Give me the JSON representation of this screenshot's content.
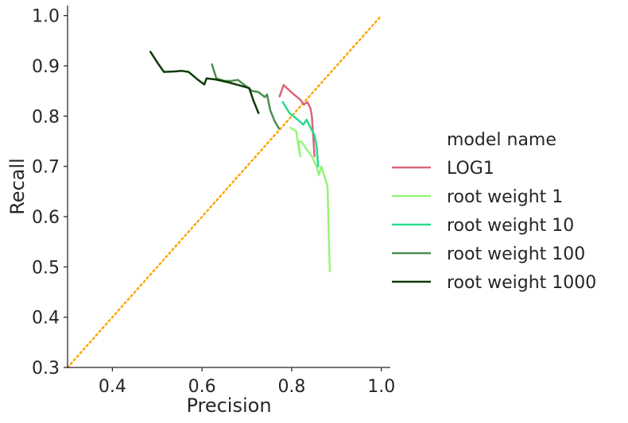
{
  "chart_data": {
    "type": "line",
    "xlabel": "Precision",
    "ylabel": "Recall",
    "xlim": [
      0.3,
      1.02
    ],
    "ylim": [
      0.3,
      1.02
    ],
    "xticks": [
      {
        "value": 0.4,
        "label": "0.4"
      },
      {
        "value": 0.6,
        "label": "0.6"
      },
      {
        "value": 0.8,
        "label": "0.8"
      },
      {
        "value": 1.0,
        "label": "1.0"
      }
    ],
    "yticks": [
      {
        "value": 0.3,
        "label": "0.3"
      },
      {
        "value": 0.4,
        "label": "0.4"
      },
      {
        "value": 0.5,
        "label": "0.5"
      },
      {
        "value": 0.6,
        "label": "0.6"
      },
      {
        "value": 0.7,
        "label": "0.7"
      },
      {
        "value": 0.8,
        "label": "0.8"
      },
      {
        "value": 0.9,
        "label": "0.9"
      },
      {
        "value": 1.0,
        "label": "1.0"
      }
    ],
    "grid": false,
    "legend": {
      "title": "model name",
      "placement": "right"
    },
    "reference_line": {
      "x": [
        0.3,
        1.0
      ],
      "y": [
        0.3,
        1.0
      ],
      "color": "#ffa500",
      "style": "dotted"
    },
    "series": [
      {
        "name": "LOG1",
        "color": "#d9667a",
        "x": [
          0.773,
          0.782,
          0.8,
          0.82,
          0.827,
          0.835,
          0.842,
          0.845,
          0.848,
          0.851
        ],
        "y": [
          0.839,
          0.862,
          0.847,
          0.832,
          0.823,
          0.828,
          0.815,
          0.8,
          0.76,
          0.72
        ]
      },
      {
        "name": "root weight 1",
        "color": "#95f579",
        "x": [
          0.797,
          0.81,
          0.815,
          0.819,
          0.815,
          0.822,
          0.83,
          0.845,
          0.855,
          0.861,
          0.866,
          0.88,
          0.882,
          0.885
        ],
        "y": [
          0.777,
          0.77,
          0.74,
          0.72,
          0.75,
          0.749,
          0.738,
          0.72,
          0.7,
          0.683,
          0.7,
          0.66,
          0.58,
          0.491
        ]
      },
      {
        "name": "root weight 10",
        "color": "#2ad98d",
        "x": [
          0.78,
          0.795,
          0.815,
          0.826,
          0.833,
          0.843,
          0.851,
          0.856,
          0.859
        ],
        "y": [
          0.828,
          0.806,
          0.792,
          0.783,
          0.793,
          0.775,
          0.762,
          0.738,
          0.7
        ]
      },
      {
        "name": "root weight 100",
        "color": "#4a8f51",
        "x": [
          0.622,
          0.632,
          0.65,
          0.665,
          0.68,
          0.695,
          0.712,
          0.725,
          0.74,
          0.745,
          0.752,
          0.762,
          0.772
        ],
        "y": [
          0.903,
          0.875,
          0.87,
          0.87,
          0.872,
          0.862,
          0.85,
          0.848,
          0.838,
          0.843,
          0.812,
          0.79,
          0.775
        ]
      },
      {
        "name": "root weight 1000",
        "color": "#0d3a06",
        "x": [
          0.485,
          0.5,
          0.515,
          0.54,
          0.555,
          0.57,
          0.59,
          0.605,
          0.61,
          0.63,
          0.66,
          0.68,
          0.705,
          0.715,
          0.726
        ],
        "y": [
          0.928,
          0.907,
          0.888,
          0.889,
          0.89,
          0.888,
          0.873,
          0.863,
          0.875,
          0.873,
          0.867,
          0.862,
          0.856,
          0.83,
          0.806
        ]
      }
    ]
  }
}
